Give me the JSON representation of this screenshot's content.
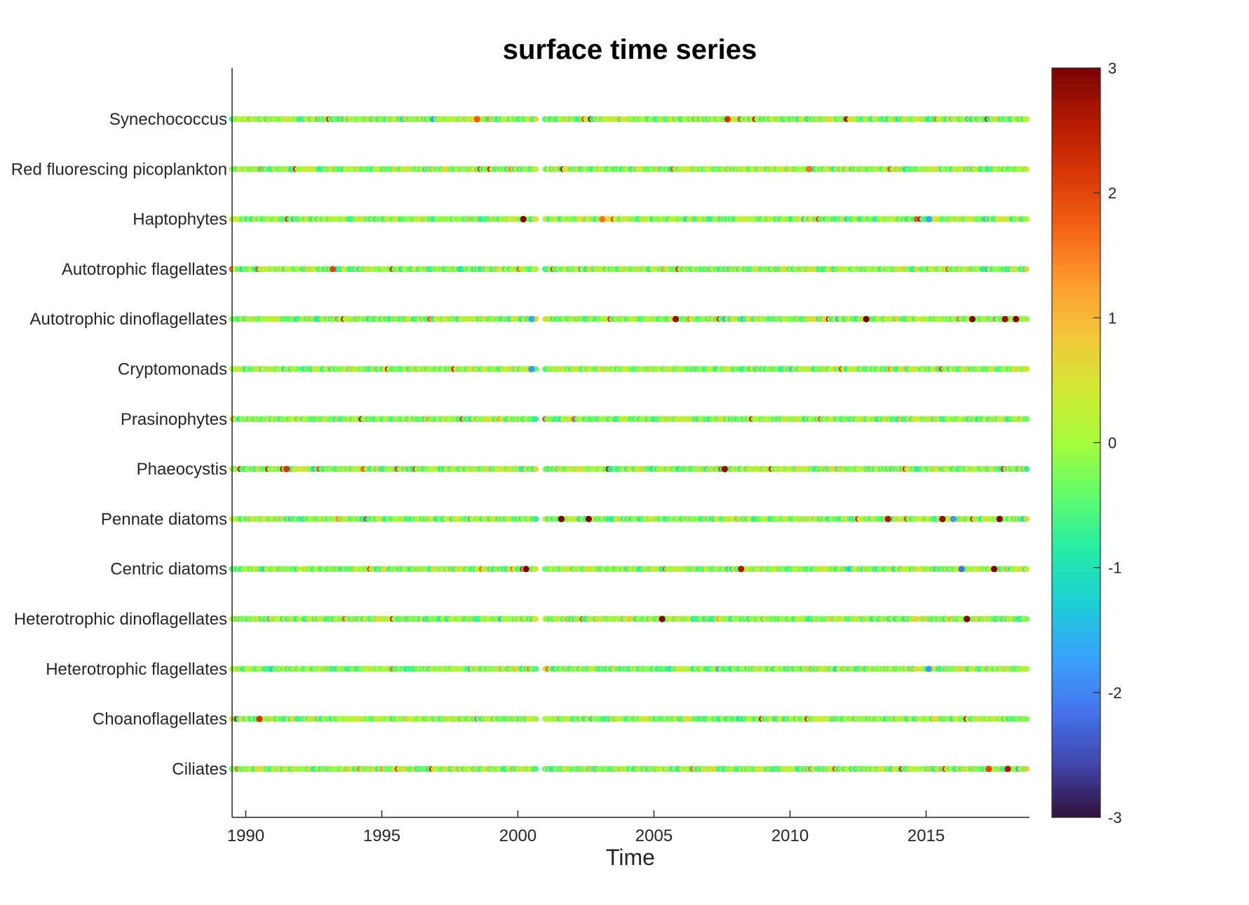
{
  "chart_data": {
    "type": "scatter",
    "title": "surface time series",
    "xlabel": "Time",
    "ylabel": "",
    "xlim": [
      1989.5,
      2018.8
    ],
    "xticks": [
      1990,
      1995,
      2000,
      2005,
      2010,
      2015
    ],
    "categories": [
      "Synechococcus",
      "Red fluorescing picoplankton",
      "Haptophytes",
      "Autotrophic flagellates",
      "Autotrophic dinoflagellates",
      "Cryptomonads",
      "Prasinophytes",
      "Phaeocystis",
      "Pennate diatoms",
      "Centric diatoms",
      "Heterotrophic dinoflagellates",
      "Heterotrophic flagellates",
      "Choanoflagellates",
      "Ciliates"
    ],
    "sampling_segments": [
      [
        1989.5,
        1992.0
      ],
      [
        1992.1,
        1996.9
      ],
      [
        1997.0,
        2000.7
      ],
      [
        2001.0,
        2004.0
      ],
      [
        2004.1,
        2012.1
      ],
      [
        2012.2,
        2014.7
      ],
      [
        2014.8,
        2018.7
      ]
    ],
    "sampling_step_years": 0.06,
    "colorbar": {
      "colormap": "turbo",
      "clim": [
        -3,
        3
      ],
      "ticks": [
        3,
        2,
        1,
        0,
        -1,
        -2,
        -3
      ]
    },
    "anomaly_highlights": [
      {
        "category": "Synechococcus",
        "x": 1998.5,
        "value": 1.8
      },
      {
        "category": "Synechococcus",
        "x": 2007.7,
        "value": 2.2
      },
      {
        "category": "Red fluorescing picoplankton",
        "x": 2010.7,
        "value": 1.6
      },
      {
        "category": "Haptophytes",
        "x": 2000.2,
        "value": 3.0
      },
      {
        "category": "Haptophytes",
        "x": 2003.1,
        "value": 1.6
      },
      {
        "category": "Haptophytes",
        "x": 2015.1,
        "value": -1.6
      },
      {
        "category": "Autotrophic flagellates",
        "x": 1993.2,
        "value": 2.0
      },
      {
        "category": "Autotrophic dinoflagellates",
        "x": 2005.8,
        "value": 2.8
      },
      {
        "category": "Autotrophic dinoflagellates",
        "x": 2012.8,
        "value": 3.0
      },
      {
        "category": "Autotrophic dinoflagellates",
        "x": 2016.7,
        "value": 3.0
      },
      {
        "category": "Autotrophic dinoflagellates",
        "x": 2017.9,
        "value": 2.8
      },
      {
        "category": "Autotrophic dinoflagellates",
        "x": 2018.3,
        "value": 3.0
      },
      {
        "category": "Autotrophic dinoflagellates",
        "x": 2000.5,
        "value": -1.6
      },
      {
        "category": "Cryptomonads",
        "x": 2000.5,
        "value": -1.8
      },
      {
        "category": "Phaeocystis",
        "x": 1991.5,
        "value": 2.2
      },
      {
        "category": "Phaeocystis",
        "x": 2007.6,
        "value": 2.8
      },
      {
        "category": "Pennate diatoms",
        "x": 2001.6,
        "value": 3.0
      },
      {
        "category": "Pennate diatoms",
        "x": 2002.6,
        "value": 3.0
      },
      {
        "category": "Pennate diatoms",
        "x": 2013.6,
        "value": 2.6
      },
      {
        "category": "Pennate diatoms",
        "x": 2015.6,
        "value": 2.8
      },
      {
        "category": "Pennate diatoms",
        "x": 2016.0,
        "value": -1.8
      },
      {
        "category": "Pennate diatoms",
        "x": 2017.7,
        "value": 3.0
      },
      {
        "category": "Centric diatoms",
        "x": 2000.3,
        "value": 3.0
      },
      {
        "category": "Centric diatoms",
        "x": 2008.2,
        "value": 2.6
      },
      {
        "category": "Centric diatoms",
        "x": 2016.3,
        "value": -2.2
      },
      {
        "category": "Centric diatoms",
        "x": 2017.5,
        "value": 3.0
      },
      {
        "category": "Heterotrophic dinoflagellates",
        "x": 2005.3,
        "value": 3.0
      },
      {
        "category": "Heterotrophic dinoflagellates",
        "x": 2016.5,
        "value": 3.0
      },
      {
        "category": "Heterotrophic flagellates",
        "x": 2015.1,
        "value": -1.8
      },
      {
        "category": "Choanoflagellates",
        "x": 1990.5,
        "value": 2.2
      },
      {
        "category": "Ciliates",
        "x": 2018.0,
        "value": 2.6
      },
      {
        "category": "Ciliates",
        "x": 2017.3,
        "value": 2.0
      }
    ]
  }
}
